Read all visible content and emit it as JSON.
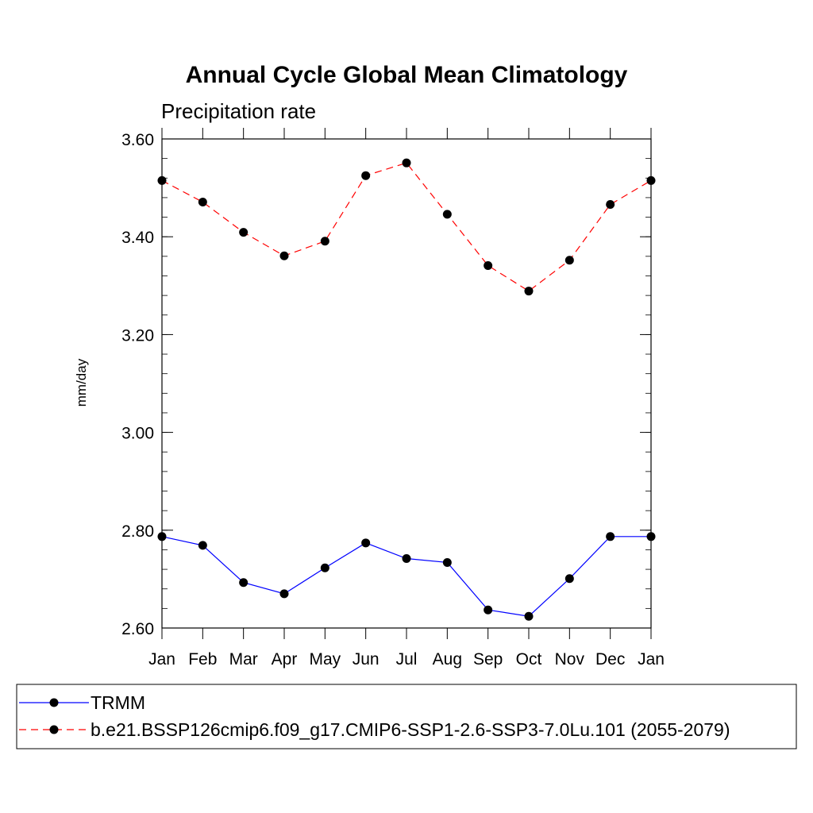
{
  "chart_data": {
    "type": "line",
    "title": "Annual Cycle Global Mean Climatology",
    "subtitle": "Precipitation rate",
    "xlabel": "",
    "ylabel": "mm/day",
    "categories": [
      "Jan",
      "Feb",
      "Mar",
      "Apr",
      "May",
      "Jun",
      "Jul",
      "Aug",
      "Sep",
      "Oct",
      "Nov",
      "Dec",
      "Jan"
    ],
    "ylim": [
      2.6,
      3.6
    ],
    "yticks": [
      "2.60",
      "2.80",
      "3.00",
      "3.20",
      "3.40",
      "3.60"
    ],
    "grid": false,
    "legend_position": "bottom",
    "series": [
      {
        "name": "TRMM",
        "color": "#0000ff",
        "dash": "solid",
        "marker": "circle",
        "values": [
          2.787,
          2.769,
          2.693,
          2.67,
          2.723,
          2.774,
          2.742,
          2.734,
          2.637,
          2.624,
          2.701,
          2.787,
          2.787
        ]
      },
      {
        "name": "b.e21.BSSP126cmip6.f09_g17.CMIP6-SSP1-2.6-SSP3-7.0Lu.101 (2055-2079)",
        "color": "#ff0000",
        "dash": "dashed",
        "marker": "circle",
        "values": [
          3.515,
          3.471,
          3.409,
          3.361,
          3.391,
          3.525,
          3.551,
          3.446,
          3.341,
          3.289,
          3.352,
          3.466,
          3.515
        ]
      }
    ]
  }
}
